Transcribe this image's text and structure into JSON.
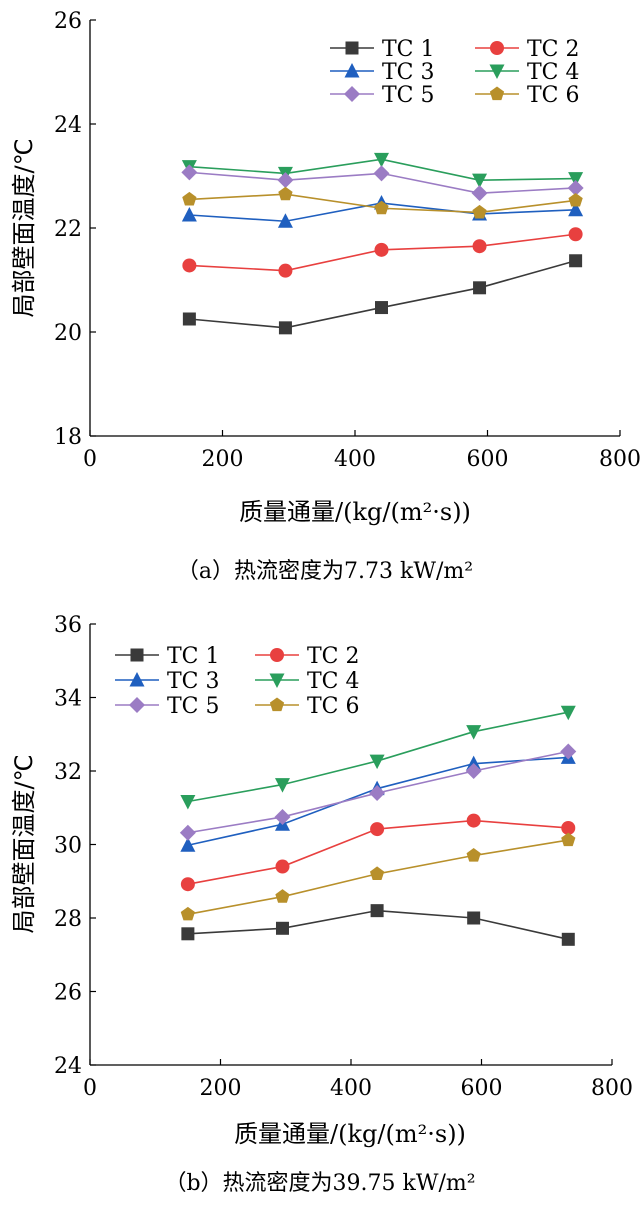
{
  "colors": {
    "TC 1": "#3a3a3a",
    "TC 2": "#e8403f",
    "TC 3": "#1f5fbf",
    "TC 4": "#2a9e5c",
    "TC 5": "#9b7cc4",
    "TC 6": "#b8902b"
  },
  "markers": {
    "TC 1": "square",
    "TC 2": "circle",
    "TC 3": "triangle-up",
    "TC 4": "triangle-down",
    "TC 5": "diamond",
    "TC 6": "pentagon"
  },
  "chart_data": [
    {
      "type": "line",
      "caption": "（a）热流密度为7.73 kW/m²",
      "xlabel": "质量通量/(kg/(m²·s))",
      "ylabel": "局部壁面温度/℃",
      "xlim": [
        0,
        800
      ],
      "ylim": [
        18,
        26
      ],
      "xticks": [
        0,
        200,
        400,
        600,
        800
      ],
      "yticks": [
        18,
        20,
        22,
        24,
        26
      ],
      "grid": false,
      "legend_position": "top-right",
      "x": [
        150,
        295,
        440,
        588,
        733
      ],
      "series": [
        {
          "name": "TC 1",
          "values": [
            20.25,
            20.08,
            20.47,
            20.85,
            21.37
          ]
        },
        {
          "name": "TC 2",
          "values": [
            21.28,
            21.18,
            21.58,
            21.65,
            21.88
          ]
        },
        {
          "name": "TC 3",
          "values": [
            22.25,
            22.13,
            22.48,
            22.27,
            22.35
          ]
        },
        {
          "name": "TC 4",
          "values": [
            23.18,
            23.05,
            23.32,
            22.92,
            22.95
          ]
        },
        {
          "name": "TC 5",
          "values": [
            23.07,
            22.92,
            23.05,
            22.67,
            22.77
          ]
        },
        {
          "name": "TC 6",
          "values": [
            22.55,
            22.65,
            22.38,
            22.3,
            22.53
          ]
        }
      ]
    },
    {
      "type": "line",
      "caption": "（b）热流密度为39.75 kW/m²",
      "xlabel": "质量通量/(kg/(m²·s))",
      "ylabel": "局部壁面温度/℃",
      "xlim": [
        0,
        800
      ],
      "ylim": [
        24,
        36
      ],
      "xticks": [
        0,
        200,
        400,
        600,
        800
      ],
      "yticks": [
        24,
        26,
        28,
        30,
        32,
        34,
        36
      ],
      "grid": false,
      "legend_position": "top-left",
      "x": [
        150,
        295,
        440,
        588,
        733
      ],
      "series": [
        {
          "name": "TC 1",
          "values": [
            27.57,
            27.72,
            28.2,
            28.0,
            27.42
          ]
        },
        {
          "name": "TC 2",
          "values": [
            28.92,
            29.4,
            30.42,
            30.65,
            30.45
          ]
        },
        {
          "name": "TC 3",
          "values": [
            29.98,
            30.55,
            31.52,
            32.2,
            32.37
          ]
        },
        {
          "name": "TC 4",
          "values": [
            31.17,
            31.63,
            32.27,
            33.07,
            33.6
          ]
        },
        {
          "name": "TC 5",
          "values": [
            30.32,
            30.75,
            31.4,
            32.0,
            32.53
          ]
        },
        {
          "name": "TC 6",
          "values": [
            28.1,
            28.58,
            29.2,
            29.7,
            30.12
          ]
        }
      ]
    }
  ]
}
